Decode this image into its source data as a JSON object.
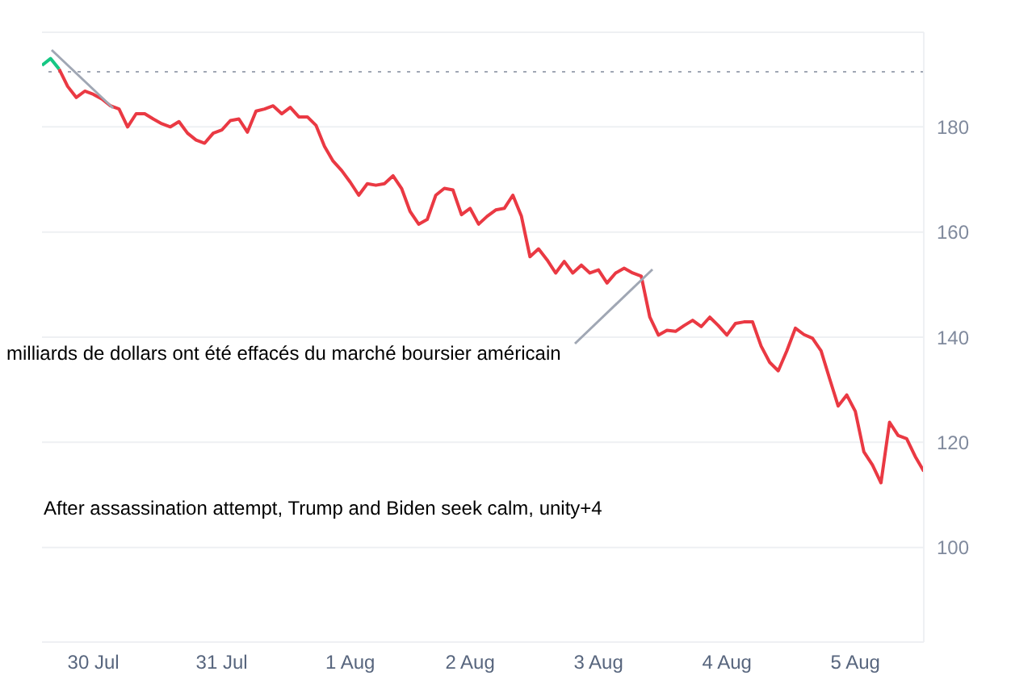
{
  "chart_data": {
    "type": "line",
    "categories": [
      null,
      null,
      null,
      null,
      null,
      null,
      "30 Jul",
      null,
      null,
      null,
      null,
      null,
      null,
      null,
      null,
      null,
      null,
      null,
      null,
      null,
      null,
      "31 Jul",
      null,
      null,
      null,
      null,
      null,
      null,
      null,
      null,
      null,
      null,
      null,
      null,
      null,
      null,
      "1 Aug",
      null,
      null,
      null,
      null,
      null,
      null,
      null,
      null,
      null,
      null,
      null,
      null,
      null,
      "2 Aug",
      null,
      null,
      null,
      null,
      null,
      null,
      null,
      null,
      null,
      null,
      null,
      null,
      null,
      null,
      "3 Aug",
      null,
      null,
      null,
      null,
      null,
      null,
      null,
      null,
      null,
      null,
      null,
      null,
      null,
      null,
      "4 Aug",
      null,
      null,
      null,
      null,
      null,
      null,
      null,
      null,
      null,
      null,
      null,
      null,
      null,
      null,
      "5 Aug",
      null,
      null,
      null,
      null,
      null,
      null,
      null,
      null
    ],
    "series": [
      {
        "color": "#16c784",
        "values": [
          191.7,
          193,
          191,
          null,
          null,
          null,
          null,
          null,
          null,
          null,
          null,
          null,
          null,
          null,
          null,
          null,
          null,
          null,
          null,
          null,
          null,
          null,
          null,
          null,
          null,
          null,
          null,
          null,
          null,
          null,
          null,
          null,
          null,
          null,
          null,
          null,
          null,
          null,
          null,
          null,
          null,
          null,
          null,
          null,
          null,
          null,
          null,
          null,
          null,
          null,
          null,
          null,
          null,
          null,
          null,
          null,
          null,
          null,
          null,
          null,
          null,
          null,
          null,
          null,
          null,
          null,
          null,
          null,
          null,
          null,
          null,
          null,
          null,
          null,
          null,
          null,
          null,
          null,
          null,
          null,
          null,
          null,
          null,
          null,
          null,
          null,
          null,
          null,
          null,
          null,
          null,
          null,
          null,
          null,
          null,
          null,
          null,
          null,
          null,
          null,
          null,
          null,
          null,
          null
        ]
      },
      {
        "color": "#ea3943",
        "values": [
          null,
          null,
          191,
          187.7,
          185.6,
          186.8,
          186.2,
          185.3,
          184,
          183.4,
          180,
          182.5,
          182.5,
          181.5,
          180.6,
          180,
          181,
          178.8,
          177.5,
          176.9,
          178.8,
          179.4,
          181.2,
          181.5,
          179,
          183,
          183.4,
          184,
          182.5,
          183.7,
          181.9,
          181.9,
          180.3,
          176.3,
          173.5,
          171.7,
          169.5,
          167,
          169.2,
          168.9,
          169.2,
          170.7,
          168.3,
          163.9,
          161.5,
          162.4,
          167,
          168.3,
          168,
          163.3,
          164.5,
          161.5,
          163,
          164.2,
          164.5,
          167,
          163,
          155.3,
          156.8,
          154.7,
          152.2,
          154.4,
          152.2,
          153.7,
          152.2,
          152.8,
          150.3,
          152.2,
          153.1,
          152.2,
          151.6,
          143.8,
          140.4,
          141.3,
          141.1,
          142.2,
          143.2,
          142,
          143.8,
          142.2,
          140.4,
          142.6,
          142.9,
          142.9,
          138.3,
          135.2,
          133.6,
          137.4,
          141.7,
          140.5,
          139.8,
          137.4,
          132.1,
          126.9,
          129,
          125.9,
          118.2,
          115.7,
          112.3,
          123.8,
          121.3,
          120.7,
          117.3,
          114.5
        ]
      }
    ],
    "ylim": [
      82,
      198
    ],
    "yticks": [
      100,
      120,
      140,
      160,
      180
    ],
    "grid": "y",
    "marker": "none",
    "line_style": "solid",
    "ref_lines": [
      {
        "axis": "y",
        "value": 190.5,
        "color": "#a0a7b4",
        "line_style": "dotted"
      }
    ],
    "annotations": [
      "milliards de dollars ont été effacés du marché boursier américain",
      "After assassination attempt, Trump and Biden seek calm, unity+4"
    ]
  }
}
